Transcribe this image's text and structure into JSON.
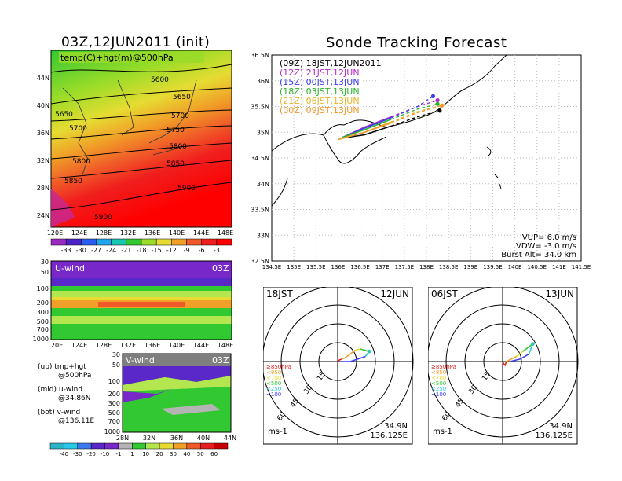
{
  "titles": {
    "init": "03Z,12JUN2011 (init)",
    "main": "Sonde Tracking Forecast"
  },
  "map_panel": {
    "label": "temp(C)+hgt(m)@500hPa",
    "lat_labels": [
      "44N",
      "40N",
      "36N",
      "32N",
      "28N",
      "24N"
    ],
    "lon_labels": [
      "120E",
      "124E",
      "128E",
      "132E",
      "136E",
      "140E",
      "144E",
      "148E"
    ],
    "contour_labels": [
      "5600",
      "5650",
      "5650",
      "5700",
      "5700",
      "5750",
      "5800",
      "5800",
      "5850",
      "5850",
      "5900",
      "5900"
    ],
    "colorbar_labels": [
      "-33",
      "-30",
      "-27",
      "-24",
      "-21",
      "-18",
      "-15",
      "-12",
      "-9",
      "-6",
      "-3"
    ],
    "colorbar_colors": [
      "#9b2bc0",
      "#4b22c6",
      "#2a5ef0",
      "#1fa6ee",
      "#18c8b0",
      "#32c832",
      "#9adc28",
      "#e6dc32",
      "#f0a028",
      "#f05a28",
      "#f01e1e",
      "#ff0000"
    ]
  },
  "uwind_panel": {
    "label": "U-wind",
    "time": "03Z",
    "y_labels": [
      "30",
      "50",
      "100",
      "200",
      "300",
      "500",
      "700",
      "1000"
    ],
    "x_labels": [
      "120E",
      "124E",
      "128E",
      "132E",
      "136E",
      "140E",
      "144E",
      "148E"
    ]
  },
  "vwind_panel": {
    "label": "V-wind",
    "time": "03Z",
    "y_labels": [
      "30",
      "50",
      "100",
      "200",
      "300",
      "500",
      "700",
      "1000"
    ],
    "x_labels": [
      "28N",
      "32N",
      "36N",
      "40N",
      "44N"
    ]
  },
  "notes": [
    {
      "head": "(up) tmp+hgt",
      "sub": "@500hPa"
    },
    {
      "head": "(mid) u-wind",
      "sub": "@34.86N"
    },
    {
      "head": "(bot) v-wind",
      "sub": "@136.11E"
    }
  ],
  "wind_colorbar": {
    "labels": [
      "-40",
      "-30",
      "-20",
      "-10",
      "-1",
      "1",
      "10",
      "20",
      "30",
      "40",
      "50",
      "60"
    ],
    "colors": [
      "#2ab4c8",
      "#28c8e6",
      "#3c78f0",
      "#5a28c8",
      "#7828c8",
      "#b4b4b4",
      "#32c832",
      "#b4e650",
      "#e6dc32",
      "#f0a028",
      "#f05a28",
      "#e61e1e",
      "#c80000"
    ]
  },
  "tracking": {
    "legend": [
      {
        "label": "(09Z)  18JST,12JUN2011",
        "color": "#000000"
      },
      {
        "label": "(12Z)  21JST,12JUN",
        "color": "#b428c8"
      },
      {
        "label": "(15Z)  00JST,13JUN",
        "color": "#3c3cf0"
      },
      {
        "label": "(18Z)  03JST,13JUN",
        "color": "#28b428"
      },
      {
        "label": "(21Z)  06JST,13JUN",
        "color": "#e6b428"
      },
      {
        "label": "(00Z)  09JST,13JUN",
        "color": "#f09628"
      }
    ],
    "params": [
      "VUP=  6.0  m/s",
      "VDW= -3.0  m/s",
      "Burst Alt=  34.0  km"
    ],
    "lat_labels": [
      "36.5N",
      "36N",
      "35.5N",
      "35N",
      "34.5N",
      "34N",
      "33.5N",
      "33N",
      "32.5N"
    ],
    "lon_labels": [
      "134.5E",
      "135E",
      "135.5E",
      "136E",
      "136.5E",
      "137E",
      "137.5E",
      "138E",
      "138.5E",
      "139E",
      "139.5E",
      "140E",
      "140.5E",
      "141E",
      "141.5E"
    ]
  },
  "hodographs": [
    {
      "left": "18JST",
      "right": "12JUN",
      "loc_lat": "34.9N",
      "loc_lon": "136.125E",
      "unit": "ms-1"
    },
    {
      "left": "06JST",
      "right": "13JUN",
      "loc_lat": "34.9N",
      "loc_lon": "136.125E",
      "unit": "ms-1"
    }
  ],
  "hodo_rings": [
    "15",
    "30",
    "45",
    "60"
  ],
  "hodo_levels": [
    {
      "label": "≥850hPa",
      "color": "#e61e1e"
    },
    {
      "label": "<850",
      "color": "#f0a028"
    },
    {
      "label": "<700",
      "color": "#e6dc32"
    },
    {
      "label": "<500",
      "color": "#32c832"
    },
    {
      "label": "<250",
      "color": "#28c8e6"
    },
    {
      "label": "<100",
      "color": "#3c3cf0"
    }
  ],
  "chart_data": [
    {
      "type": "heatmap",
      "title": "temp(C)+hgt(m)@500hPa",
      "x_range": [
        "120E",
        "149E"
      ],
      "y_range": [
        "22N",
        "46N"
      ],
      "contours_m": [
        5600,
        5650,
        5700,
        5750,
        5800,
        5850,
        5900
      ],
      "temp_scale_C": [
        -33,
        -30,
        -27,
        -24,
        -21,
        -18,
        -15,
        -12,
        -9,
        -6,
        -3
      ]
    },
    {
      "type": "heatmap",
      "title": "U-wind",
      "x_range": [
        "120E",
        "149E"
      ],
      "y_levels_hPa": [
        30,
        50,
        100,
        200,
        300,
        500,
        700,
        1000
      ]
    },
    {
      "type": "heatmap",
      "title": "V-wind",
      "x_range": [
        "28N",
        "44N"
      ],
      "y_levels_hPa": [
        30,
        50,
        100,
        200,
        300,
        500,
        700,
        1000
      ]
    },
    {
      "type": "line",
      "title": "Sonde Tracking Forecast",
      "x_range": [
        134.5,
        141.5
      ],
      "y_range": [
        32.5,
        36.5
      ],
      "series": [
        {
          "name": "(09Z)  18JST,12JUN2011",
          "color": "#000000",
          "x": [
            136.05,
            136.6,
            137.2,
            137.8,
            138.3
          ],
          "y": [
            34.88,
            34.95,
            35.12,
            35.3,
            35.42
          ]
        },
        {
          "name": "(12Z)  21JST,12JUN",
          "color": "#b428c8",
          "x": [
            136.1,
            136.6,
            137.2,
            137.8,
            138.25
          ],
          "y": [
            34.9,
            35.1,
            35.3,
            35.5,
            35.62
          ]
        },
        {
          "name": "(15Z)  00JST,13JUN",
          "color": "#3c3cf0",
          "x": [
            136.1,
            136.6,
            137.2,
            137.8,
            138.15
          ],
          "y": [
            34.9,
            35.08,
            35.28,
            35.5,
            35.7
          ]
        },
        {
          "name": "(18Z)  03JST,13JUN",
          "color": "#28b428",
          "x": [
            136.1,
            136.6,
            137.2,
            137.8,
            138.25
          ],
          "y": [
            34.9,
            35.05,
            35.25,
            35.45,
            35.55
          ]
        },
        {
          "name": "(21Z)  06JST,13JUN",
          "color": "#e6b428",
          "x": [
            136.0,
            136.6,
            137.2,
            137.8,
            138.35
          ],
          "y": [
            34.86,
            35.0,
            35.2,
            35.4,
            35.52
          ]
        },
        {
          "name": "(00Z)  09JST,13JUN",
          "color": "#f09628",
          "x": [
            136.0,
            136.6,
            137.2,
            137.8,
            138.35
          ],
          "y": [
            34.86,
            35.0,
            35.18,
            35.38,
            35.52
          ]
        }
      ]
    },
    {
      "type": "line",
      "title": "18JST 12JUN",
      "series": [
        {
          "name": "≥850hPa",
          "color": "#e61e1e",
          "u": [
            0,
            1,
            3
          ],
          "v": [
            0,
            1,
            2
          ]
        },
        {
          "name": "<850",
          "color": "#f0a028",
          "u": [
            3,
            6,
            10,
            14
          ],
          "v": [
            2,
            3,
            6,
            9
          ]
        },
        {
          "name": "<700",
          "color": "#e6dc32",
          "u": [
            14,
            18
          ],
          "v": [
            9,
            10
          ]
        },
        {
          "name": "<500",
          "color": "#32c832",
          "u": [
            18,
            25
          ],
          "v": [
            10,
            8
          ]
        },
        {
          "name": "<250",
          "color": "#28c8e6",
          "u": [
            25,
            22
          ],
          "v": [
            8,
            4
          ]
        },
        {
          "name": "<100",
          "color": "#3c3cf0",
          "u": [
            22,
            10,
            2
          ],
          "v": [
            4,
            0,
            0
          ]
        }
      ]
    },
    {
      "type": "line",
      "title": "06JST 13JUN",
      "series": [
        {
          "name": "≥850hPa",
          "color": "#e61e1e",
          "u": [
            0,
            1,
            2,
            3
          ],
          "v": [
            0,
            -2,
            -3,
            0
          ]
        },
        {
          "name": "<850",
          "color": "#f0a028",
          "u": [
            3,
            7,
            11
          ],
          "v": [
            0,
            2,
            4
          ]
        },
        {
          "name": "<700",
          "color": "#e6dc32",
          "u": [
            11,
            16
          ],
          "v": [
            4,
            8
          ]
        },
        {
          "name": "<500",
          "color": "#32c832",
          "u": [
            16,
            24
          ],
          "v": [
            8,
            14
          ]
        },
        {
          "name": "<250",
          "color": "#28c8e6",
          "u": [
            24,
            21
          ],
          "v": [
            14,
            6
          ]
        },
        {
          "name": "<100",
          "color": "#3c3cf0",
          "u": [
            21,
            14,
            6
          ],
          "v": [
            6,
            2,
            0
          ]
        }
      ]
    }
  ]
}
